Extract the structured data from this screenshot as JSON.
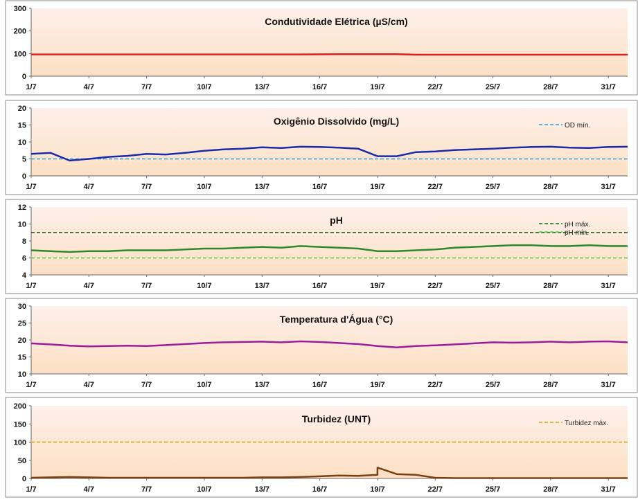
{
  "panels": [
    {
      "title": "Condutividade Elétrica (µS/cm)",
      "type": "line",
      "ylim": [
        0,
        300
      ],
      "yticks": [
        0,
        100,
        200,
        300
      ],
      "xticks": [
        "1/7",
        "4/7",
        "7/7",
        "10/7",
        "13/7",
        "16/7",
        "19/7",
        "22/7",
        "25/7",
        "28/7",
        "31/7"
      ],
      "xlim": [
        "1/7",
        "1/8"
      ],
      "grid": false,
      "series": [
        {
          "color": "#d62020",
          "x": [
            "1/7",
            "3/7",
            "5/7",
            "7/7",
            "9/7",
            "11/7",
            "13/7",
            "15/7",
            "17/7",
            "19/7",
            "20/7",
            "21/7",
            "23/7",
            "25/7",
            "27/7",
            "29/7",
            "31/7",
            "1/8"
          ],
          "y": [
            96,
            96,
            96,
            96,
            96,
            96,
            96,
            96,
            97,
            97,
            97,
            95,
            95,
            95,
            95,
            95,
            95,
            95
          ]
        }
      ],
      "references": []
    },
    {
      "title": "Oxigênio Dissolvido (mg/L)",
      "type": "line",
      "ylim": [
        0,
        20
      ],
      "yticks": [
        0,
        5,
        10,
        15,
        20
      ],
      "xticks": [
        "1/7",
        "4/7",
        "7/7",
        "10/7",
        "13/7",
        "16/7",
        "19/7",
        "22/7",
        "25/7",
        "28/7",
        "31/7"
      ],
      "xlim": [
        "1/7",
        "1/8"
      ],
      "grid": false,
      "series": [
        {
          "color": "#1a2aa8",
          "x": [
            "1/7",
            "2/7",
            "3/7",
            "4/7",
            "5/7",
            "6/7",
            "7/7",
            "8/7",
            "9/7",
            "10/7",
            "11/7",
            "12/7",
            "13/7",
            "14/7",
            "15/7",
            "16/7",
            "17/7",
            "18/7",
            "19/7",
            "20/7",
            "21/7",
            "22/7",
            "23/7",
            "24/7",
            "25/7",
            "26/7",
            "27/7",
            "28/7",
            "29/7",
            "30/7",
            "31/7",
            "1/8"
          ],
          "y": [
            6.5,
            6.8,
            4.5,
            5.0,
            5.6,
            5.9,
            6.5,
            6.3,
            6.8,
            7.4,
            7.8,
            8.0,
            8.4,
            8.2,
            8.6,
            8.5,
            8.3,
            8.0,
            5.8,
            5.8,
            7.0,
            7.2,
            7.6,
            7.8,
            8.0,
            8.3,
            8.5,
            8.6,
            8.3,
            8.2,
            8.5,
            8.6
          ]
        }
      ],
      "references": [
        {
          "label": "OD mín.",
          "value": 5,
          "color": "#2a9fe0"
        }
      ]
    },
    {
      "title": "pH",
      "type": "line",
      "ylim": [
        4,
        12
      ],
      "yticks": [
        4,
        6,
        8,
        10,
        12
      ],
      "xticks": [
        "1/7",
        "4/7",
        "7/7",
        "10/7",
        "13/7",
        "16/7",
        "19/7",
        "22/7",
        "25/7",
        "28/7",
        "31/7"
      ],
      "xlim": [
        "1/7",
        "1/8"
      ],
      "grid": false,
      "series": [
        {
          "color": "#2a8a2a",
          "x": [
            "1/7",
            "2/7",
            "3/7",
            "4/7",
            "5/7",
            "6/7",
            "7/7",
            "8/7",
            "9/7",
            "10/7",
            "11/7",
            "12/7",
            "13/7",
            "14/7",
            "15/7",
            "16/7",
            "17/7",
            "18/7",
            "19/7",
            "20/7",
            "21/7",
            "22/7",
            "23/7",
            "24/7",
            "25/7",
            "26/7",
            "27/7",
            "28/7",
            "29/7",
            "30/7",
            "31/7",
            "1/8"
          ],
          "y": [
            6.9,
            6.8,
            6.7,
            6.8,
            6.8,
            6.9,
            6.9,
            6.9,
            7.0,
            7.1,
            7.1,
            7.2,
            7.3,
            7.2,
            7.4,
            7.3,
            7.2,
            7.1,
            6.8,
            6.8,
            6.9,
            7.0,
            7.2,
            7.3,
            7.4,
            7.5,
            7.5,
            7.4,
            7.4,
            7.5,
            7.4,
            7.4
          ]
        }
      ],
      "references": [
        {
          "label": "pH máx.",
          "value": 9,
          "color": "#1e6b1e"
        },
        {
          "label": "pH mín.",
          "value": 6,
          "color": "#4cc94c"
        }
      ]
    },
    {
      "title": "Temperatura d'Água (°C)",
      "type": "line",
      "ylim": [
        10,
        30
      ],
      "yticks": [
        10,
        15,
        20,
        25,
        30
      ],
      "xticks": [
        "1/7",
        "4/7",
        "7/7",
        "10/7",
        "13/7",
        "16/7",
        "19/7",
        "22/7",
        "25/7",
        "28/7",
        "31/7"
      ],
      "xlim": [
        "1/7",
        "1/8"
      ],
      "grid": false,
      "series": [
        {
          "color": "#9a1c9a",
          "x": [
            "1/7",
            "2/7",
            "3/7",
            "4/7",
            "5/7",
            "6/7",
            "7/7",
            "8/7",
            "9/7",
            "10/7",
            "11/7",
            "12/7",
            "13/7",
            "14/7",
            "15/7",
            "16/7",
            "17/7",
            "18/7",
            "19/7",
            "20/7",
            "21/7",
            "22/7",
            "23/7",
            "24/7",
            "25/7",
            "26/7",
            "27/7",
            "28/7",
            "29/7",
            "30/7",
            "31/7",
            "1/8"
          ],
          "y": [
            19.0,
            18.7,
            18.3,
            18.1,
            18.2,
            18.3,
            18.2,
            18.5,
            18.8,
            19.1,
            19.3,
            19.4,
            19.5,
            19.3,
            19.6,
            19.4,
            19.1,
            18.8,
            18.2,
            17.8,
            18.2,
            18.4,
            18.7,
            19.0,
            19.3,
            19.2,
            19.3,
            19.5,
            19.3,
            19.5,
            19.6,
            19.3
          ]
        }
      ],
      "references": []
    },
    {
      "title": "Turbidez (UNT)",
      "type": "line",
      "ylim": [
        0,
        200
      ],
      "yticks": [
        0,
        50,
        100,
        150,
        200
      ],
      "xticks": [
        "1/7",
        "4/7",
        "7/7",
        "10/7",
        "13/7",
        "16/7",
        "19/7",
        "22/7",
        "25/7",
        "28/7",
        "31/7"
      ],
      "xlim": [
        "1/7",
        "1/8"
      ],
      "grid": false,
      "series": [
        {
          "color": "#7a4012",
          "x": [
            "1/7",
            "2/7",
            "3/7",
            "4/7",
            "5/7",
            "6/7",
            "7/7",
            "8/7",
            "9/7",
            "10/7",
            "11/7",
            "12/7",
            "13/7",
            "14/7",
            "15/7",
            "16/7",
            "17/7",
            "18/7",
            "19/7",
            "19/7",
            "20/7",
            "21/7",
            "22/7",
            "23/7",
            "25/7",
            "27/7",
            "29/7",
            "31/7",
            "1/8"
          ],
          "y": [
            2,
            3,
            4,
            3,
            2,
            2,
            2,
            2,
            2,
            2,
            2,
            2,
            3,
            3,
            4,
            6,
            8,
            7,
            10,
            30,
            12,
            10,
            2,
            1,
            1,
            1,
            1,
            1,
            1
          ]
        }
      ],
      "references": [
        {
          "label": "Turbidez máx.",
          "value": 100,
          "color": "#d4a017"
        }
      ]
    }
  ]
}
